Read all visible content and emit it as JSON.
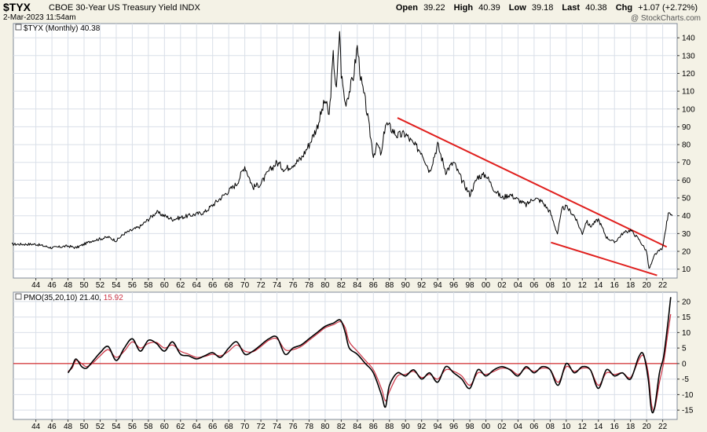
{
  "header": {
    "symbol": "$TYX",
    "name": "CBOE 30-Year US Treasury Yield",
    "exchange": "INDX",
    "timestamp": "2-Mar-2023 11:54am",
    "watermark": "@ StockCharts.com",
    "open_label": "Open",
    "open": "39.22",
    "high_label": "High",
    "high": "40.39",
    "low_label": "Low",
    "low": "39.18",
    "last_label": "Last",
    "last": "40.38",
    "chg_label": "Chg",
    "chg": "+1.07 (+2.72%)"
  },
  "legend": {
    "price": "$TYX (Monthly) 40.38",
    "pmo_label": "PMO(35,20,10)",
    "pmo_value": "21.40,",
    "pmo_signal": "15.92"
  },
  "colors": {
    "background": "#f4f2e6",
    "plot": "#ffffff",
    "grid": "#d9dfe8",
    "price_line": "#000000",
    "trend_line": "#e0201e",
    "pmo_line": "#000000",
    "pmo_signal": "#cc3344",
    "zero_line": "#cc0000"
  },
  "chart_data": [
    {
      "type": "line",
      "series": [
        {
          "name": "$TYX (Monthly)",
          "x": [
            1941,
            1944,
            1946,
            1948,
            1949,
            1951,
            1953,
            1954,
            1955,
            1957,
            1958,
            1959,
            1960,
            1961,
            1963,
            1965,
            1966,
            1968,
            1969,
            1970,
            1971,
            1972,
            1973,
            1974,
            1975,
            1977,
            1978,
            1979,
            1980,
            1980.5,
            1981,
            1981.4,
            1981.8,
            1982,
            1982.5,
            1983,
            1983.5,
            1984,
            1984.5,
            1985,
            1986,
            1986.5,
            1987,
            1987.5,
            1988,
            1989,
            1990,
            1991,
            1992,
            1993,
            1994,
            1995,
            1996,
            1997,
            1998,
            1999,
            2000,
            2001,
            2002,
            2003,
            2004,
            2005,
            2006,
            2007,
            2008,
            2008.9,
            2009.5,
            2010,
            2011,
            2012,
            2012.5,
            2013,
            2014,
            2015,
            2016,
            2017,
            2018,
            2019,
            2020,
            2020.3,
            2020.7,
            2021,
            2021.5,
            2022,
            2022.5,
            2022.8,
            2023.2
          ],
          "values": [
            24,
            24,
            22,
            23,
            22,
            26,
            28,
            26,
            30,
            34,
            38,
            42,
            40,
            38,
            40,
            42,
            46,
            54,
            58,
            68,
            56,
            58,
            65,
            70,
            66,
            72,
            80,
            90,
            105,
            96,
            130,
            110,
            145,
            120,
            103,
            110,
            118,
            135,
            115,
            104,
            74,
            80,
            74,
            92,
            90,
            85,
            86,
            80,
            76,
            65,
            80,
            65,
            70,
            60,
            52,
            62,
            63,
            55,
            50,
            52,
            49,
            46,
            50,
            48,
            42,
            30,
            44,
            45,
            40,
            30,
            37,
            34,
            38,
            28,
            25,
            30,
            32,
            27,
            20,
            10,
            14,
            18,
            20,
            22,
            36,
            43,
            40
          ]
        }
      ],
      "annotations": [
        {
          "type": "trendline",
          "x": [
            1989,
            2022.5
          ],
          "values": [
            95,
            22.5
          ]
        },
        {
          "type": "trendline",
          "x": [
            2008.1,
            2021.3
          ],
          "values": [
            25,
            6.5
          ]
        }
      ],
      "x_ticks": [
        "44",
        "46",
        "48",
        "50",
        "52",
        "54",
        "56",
        "58",
        "60",
        "62",
        "64",
        "66",
        "68",
        "70",
        "72",
        "74",
        "76",
        "78",
        "80",
        "82",
        "84",
        "86",
        "88",
        "90",
        "92",
        "94",
        "96",
        "98",
        "00",
        "02",
        "04",
        "06",
        "08",
        "10",
        "12",
        "14",
        "16",
        "18",
        "20",
        "22"
      ],
      "y_ticks": [
        "10",
        "20",
        "30",
        "40",
        "50",
        "60",
        "70",
        "80",
        "90",
        "100",
        "110",
        "120",
        "130",
        "140"
      ],
      "xlim": [
        1941.2,
        2023.8
      ],
      "ylim": [
        5,
        148
      ],
      "grid": true
    },
    {
      "type": "line",
      "series": [
        {
          "name": "PMO(35,20,10)",
          "x": [
            1948,
            1948.5,
            1949,
            1949.7,
            1950.3,
            1951,
            1952,
            1953,
            1954,
            1955,
            1956,
            1957,
            1958,
            1959,
            1960,
            1961,
            1962,
            1963,
            1964,
            1965,
            1966,
            1967,
            1968,
            1969,
            1970,
            1971,
            1972,
            1973,
            1974,
            1975,
            1976,
            1977,
            1978,
            1979,
            1980,
            1981,
            1981.9,
            1982.5,
            1983,
            1984,
            1985,
            1986,
            1987,
            1987.5,
            1988,
            1989,
            1990,
            1991,
            1992,
            1993,
            1994,
            1995,
            1996,
            1997,
            1998,
            1999,
            2000,
            2001,
            2002,
            2003,
            2004,
            2005,
            2006,
            2007,
            2008,
            2009,
            2010,
            2011,
            2012,
            2013,
            2014,
            2015,
            2016,
            2017,
            2018,
            2019,
            2019.6,
            2020.2,
            2020.6,
            2021,
            2021.6,
            2022.1,
            2022.6,
            2023.0
          ],
          "values": [
            -3,
            -1,
            1.5,
            -1,
            -1.5,
            0.5,
            3.5,
            5.5,
            1,
            5,
            8,
            4,
            7.5,
            6.5,
            4,
            7,
            3,
            2.5,
            1.5,
            2.5,
            3.5,
            2,
            5,
            7,
            3,
            4,
            6,
            8,
            8.5,
            3,
            5,
            6,
            8,
            10,
            12,
            13,
            14,
            10,
            5,
            3,
            0,
            -3,
            -10,
            -14,
            -7,
            -3,
            -4,
            -2,
            -5,
            -3,
            -6,
            -1,
            -3,
            -5,
            -8,
            -2,
            -4,
            -2,
            -1,
            -2,
            -4,
            -1,
            -3,
            -1,
            -2,
            -7,
            0,
            -3,
            -1,
            -2,
            -8,
            -2,
            -4,
            -3,
            -5,
            2,
            3,
            -5,
            -15,
            -14,
            -3,
            2,
            12,
            21.4
          ]
        },
        {
          "name": "Signal",
          "x": [
            1948,
            1948.5,
            1949,
            1949.7,
            1950.3,
            1951,
            1952,
            1953,
            1954,
            1955,
            1956,
            1957,
            1958,
            1959,
            1960,
            1961,
            1962,
            1963,
            1964,
            1965,
            1966,
            1967,
            1968,
            1969,
            1970,
            1971,
            1972,
            1973,
            1974,
            1975,
            1976,
            1977,
            1978,
            1979,
            1980,
            1981,
            1981.9,
            1982.5,
            1983,
            1984,
            1985,
            1986,
            1987,
            1987.5,
            1988,
            1989,
            1990,
            1991,
            1992,
            1993,
            1994,
            1995,
            1996,
            1997,
            1998,
            1999,
            2000,
            2001,
            2002,
            2003,
            2004,
            2005,
            2006,
            2007,
            2008,
            2009,
            2010,
            2011,
            2012,
            2013,
            2014,
            2015,
            2016,
            2017,
            2018,
            2019,
            2019.6,
            2020.2,
            2020.6,
            2021,
            2021.6,
            2022.1,
            2022.6,
            2023.0
          ],
          "values": [
            -2.5,
            -1.5,
            1,
            0,
            -1,
            0,
            2.5,
            4.5,
            2,
            4,
            7,
            5,
            6.5,
            6.8,
            5,
            6,
            4,
            3,
            2,
            2.3,
            3,
            2.5,
            4,
            6,
            4,
            3.8,
            5.5,
            7.5,
            8,
            4.5,
            4.5,
            5.5,
            7.5,
            9.5,
            11.5,
            12.5,
            13.5,
            11.5,
            7,
            4,
            1,
            -2,
            -8,
            -12,
            -9,
            -4,
            -3.5,
            -2.5,
            -4.5,
            -3.5,
            -5,
            -2,
            -2.5,
            -4,
            -7,
            -3,
            -3.5,
            -2.5,
            -1.5,
            -1.8,
            -3.5,
            -1.5,
            -2.5,
            -1.5,
            -2,
            -6,
            -1,
            -2.5,
            -1.5,
            -2,
            -7,
            -3,
            -3.5,
            -3,
            -4.5,
            1,
            2.5,
            -3,
            -13,
            -14.5,
            -6,
            0,
            9,
            15.92
          ]
        }
      ],
      "x_ticks": [
        "44",
        "46",
        "48",
        "50",
        "52",
        "54",
        "56",
        "58",
        "60",
        "62",
        "64",
        "66",
        "68",
        "70",
        "72",
        "74",
        "76",
        "78",
        "80",
        "82",
        "84",
        "86",
        "88",
        "90",
        "92",
        "94",
        "96",
        "98",
        "00",
        "02",
        "04",
        "06",
        "08",
        "10",
        "12",
        "14",
        "16",
        "18",
        "20",
        "22"
      ],
      "y_ticks": [
        "-15",
        "-10",
        "-5",
        "0",
        "5",
        "10",
        "15",
        "20"
      ],
      "xlim": [
        1941.2,
        2023.8
      ],
      "ylim": [
        -18,
        23
      ],
      "grid": true
    }
  ]
}
